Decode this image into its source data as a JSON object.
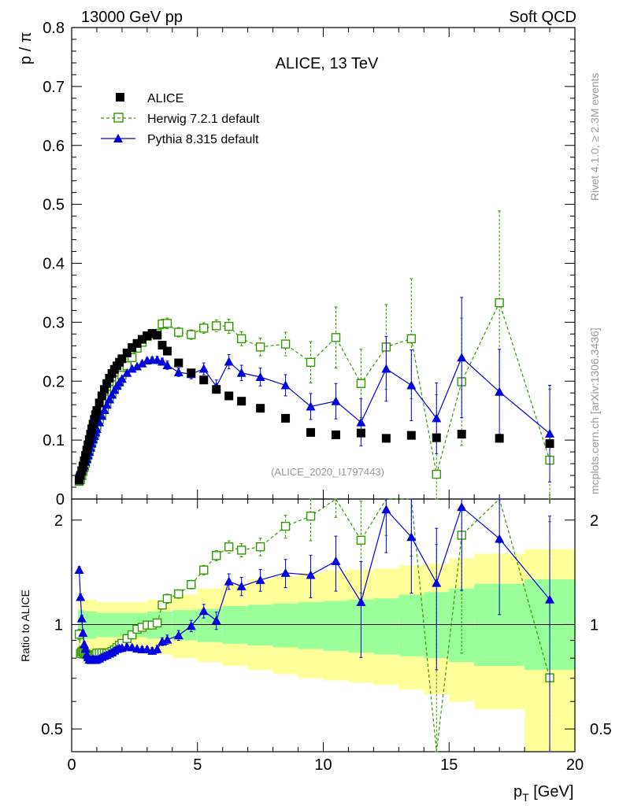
{
  "header": {
    "left": "13000 GeV pp",
    "right": "Soft QCD"
  },
  "side_text": {
    "rivet": "Rivet 4.1.0, ≥ 2.3M events",
    "mcplots": "mcplots.cern.ch [arXiv:1306.3436]"
  },
  "colors": {
    "data": "#000000",
    "herwig": "#339900",
    "pythia": "#0000dd",
    "band_inner": "#99ff99",
    "band_outer": "#ffff99"
  },
  "chart_data": [
    {
      "type": "scatter",
      "panel": "main",
      "title": "ALICE, 13 TeV",
      "analysis_label": "(ALICE_2020_I1797443)",
      "ylabel": "p / π",
      "xlabel": "",
      "xlim": [
        0,
        20
      ],
      "ylim": [
        0,
        0.8
      ],
      "x_ticks": [
        0,
        5,
        10,
        15,
        20
      ],
      "y_ticks": [
        0,
        0.1,
        0.2,
        0.3,
        0.4,
        0.5,
        0.6,
        0.7,
        0.8
      ],
      "y_tick_labels": [
        "0",
        "0.1",
        "0.2",
        "0.3",
        "0.4",
        "0.5",
        "0.6",
        "0.7",
        "0.8"
      ],
      "legend_position": "top-left",
      "series": [
        {
          "name": "ALICE",
          "style": "data",
          "x": [
            0.3,
            0.35,
            0.4,
            0.45,
            0.5,
            0.55,
            0.6,
            0.65,
            0.7,
            0.75,
            0.8,
            0.85,
            0.9,
            0.95,
            1.0,
            1.1,
            1.2,
            1.3,
            1.4,
            1.5,
            1.6,
            1.7,
            1.8,
            1.9,
            2.0,
            2.2,
            2.4,
            2.6,
            2.8,
            3.0,
            3.2,
            3.4,
            3.6,
            3.8,
            4.25,
            4.75,
            5.25,
            5.75,
            6.25,
            6.75,
            7.5,
            8.5,
            9.5,
            10.5,
            11.5,
            12.5,
            13.5,
            14.5,
            15.5,
            17.0,
            19.0
          ],
          "y": [
            0.032,
            0.04,
            0.048,
            0.056,
            0.065,
            0.074,
            0.083,
            0.092,
            0.101,
            0.11,
            0.119,
            0.127,
            0.135,
            0.143,
            0.15,
            0.163,
            0.175,
            0.186,
            0.196,
            0.205,
            0.213,
            0.22,
            0.226,
            0.232,
            0.238,
            0.248,
            0.257,
            0.264,
            0.271,
            0.277,
            0.281,
            0.278,
            0.261,
            0.251,
            0.231,
            0.214,
            0.202,
            0.186,
            0.175,
            0.166,
            0.154,
            0.137,
            0.113,
            0.109,
            0.112,
            0.103,
            0.108,
            0.104,
            0.11,
            0.103,
            0.094
          ],
          "err": []
        },
        {
          "name": "Herwig 7.2.1 default",
          "style": "herwig",
          "x": [
            0.3,
            0.35,
            0.4,
            0.45,
            0.5,
            0.55,
            0.6,
            0.65,
            0.7,
            0.75,
            0.8,
            0.85,
            0.9,
            0.95,
            1.0,
            1.1,
            1.2,
            1.3,
            1.4,
            1.5,
            1.6,
            1.7,
            1.8,
            1.9,
            2.0,
            2.2,
            2.4,
            2.6,
            2.8,
            3.0,
            3.2,
            3.4,
            3.6,
            3.8,
            4.25,
            4.75,
            5.25,
            5.75,
            6.25,
            6.75,
            7.5,
            8.5,
            9.5,
            10.5,
            11.5,
            12.5,
            13.5,
            14.5,
            15.5,
            17.0,
            19.0
          ],
          "y": [
            0.03,
            0.033,
            0.04,
            0.047,
            0.054,
            0.061,
            0.068,
            0.075,
            0.082,
            0.089,
            0.096,
            0.103,
            0.11,
            0.117,
            0.124,
            0.135,
            0.145,
            0.154,
            0.162,
            0.17,
            0.178,
            0.186,
            0.194,
            0.202,
            0.21,
            0.226,
            0.24,
            0.256,
            0.266,
            0.276,
            0.28,
            0.281,
            0.297,
            0.298,
            0.283,
            0.279,
            0.29,
            0.294,
            0.293,
            0.272,
            0.258,
            0.263,
            0.232,
            0.274,
            0.196,
            0.258,
            0.272,
            0.042,
            0.199,
            0.333,
            0.066
          ],
          "err": [
            0.001,
            0.001,
            0.001,
            0.001,
            0.001,
            0.001,
            0.001,
            0.001,
            0.001,
            0.001,
            0.001,
            0.001,
            0.001,
            0.001,
            0.002,
            0.002,
            0.002,
            0.002,
            0.002,
            0.002,
            0.002,
            0.002,
            0.002,
            0.002,
            0.003,
            0.003,
            0.003,
            0.004,
            0.004,
            0.005,
            0.006,
            0.007,
            0.008,
            0.009,
            0.008,
            0.008,
            0.009,
            0.01,
            0.012,
            0.012,
            0.015,
            0.02,
            0.035,
            0.052,
            0.058,
            0.072,
            0.102,
            0.135,
            0.108,
            0.156,
            0.12
          ]
        },
        {
          "name": "Pythia 8.315 default",
          "style": "pythia",
          "x": [
            0.3,
            0.35,
            0.4,
            0.45,
            0.5,
            0.55,
            0.6,
            0.65,
            0.7,
            0.75,
            0.8,
            0.85,
            0.9,
            0.95,
            1.0,
            1.1,
            1.2,
            1.3,
            1.4,
            1.5,
            1.6,
            1.7,
            1.8,
            1.9,
            2.0,
            2.2,
            2.4,
            2.6,
            2.8,
            3.0,
            3.2,
            3.4,
            3.6,
            3.8,
            4.25,
            4.75,
            5.25,
            5.75,
            6.25,
            6.75,
            7.5,
            8.5,
            9.5,
            10.5,
            11.5,
            12.5,
            13.5,
            14.5,
            15.5,
            17.0,
            19.0
          ],
          "y": [
            0.046,
            0.048,
            0.05,
            0.053,
            0.057,
            0.063,
            0.068,
            0.074,
            0.08,
            0.087,
            0.094,
            0.101,
            0.107,
            0.113,
            0.119,
            0.13,
            0.141,
            0.151,
            0.16,
            0.169,
            0.177,
            0.185,
            0.192,
            0.198,
            0.204,
            0.214,
            0.221,
            0.225,
            0.23,
            0.235,
            0.236,
            0.236,
            0.233,
            0.227,
            0.215,
            0.212,
            0.221,
            0.191,
            0.233,
            0.214,
            0.207,
            0.193,
            0.157,
            0.166,
            0.13,
            0.221,
            0.193,
            0.137,
            0.24,
            0.182,
            0.111
          ],
          "err": [
            0.001,
            0.001,
            0.001,
            0.001,
            0.001,
            0.001,
            0.001,
            0.001,
            0.001,
            0.001,
            0.001,
            0.001,
            0.001,
            0.001,
            0.002,
            0.002,
            0.002,
            0.002,
            0.002,
            0.002,
            0.002,
            0.002,
            0.002,
            0.002,
            0.002,
            0.003,
            0.003,
            0.003,
            0.004,
            0.004,
            0.005,
            0.006,
            0.006,
            0.007,
            0.007,
            0.008,
            0.01,
            0.011,
            0.012,
            0.013,
            0.015,
            0.018,
            0.022,
            0.03,
            0.04,
            0.055,
            0.06,
            0.06,
            0.102,
            0.072,
            0.082
          ]
        }
      ]
    },
    {
      "type": "line",
      "panel": "ratio",
      "ylabel": "Ratio to ALICE",
      "xlabel": "p_T [GeV]",
      "xlim": [
        0,
        20
      ],
      "ylim": [
        0.43,
        2.3
      ],
      "y_scale": "log",
      "x_ticks": [
        0,
        5,
        10,
        15,
        20
      ],
      "x_tick_labels": [
        "0",
        "5",
        "10",
        "15",
        "20"
      ],
      "y_ticks": [
        0.5,
        1,
        2
      ],
      "y_tick_labels": [
        "0.5",
        "1",
        "2"
      ],
      "uncertainty_band": {
        "x_edges": [
          0.25,
          0.5,
          1.0,
          2.0,
          3.0,
          4.0,
          5.0,
          6.0,
          7.0,
          8.0,
          9.0,
          10.0,
          11.0,
          12.0,
          13.0,
          14.0,
          15.0,
          16.0,
          18.0,
          20.0
        ],
        "inner_lo": [
          0.9,
          0.91,
          0.92,
          0.92,
          0.91,
          0.9,
          0.89,
          0.88,
          0.87,
          0.86,
          0.85,
          0.84,
          0.83,
          0.82,
          0.81,
          0.8,
          0.78,
          0.76,
          0.74
        ],
        "inner_hi": [
          1.1,
          1.09,
          1.08,
          1.08,
          1.09,
          1.1,
          1.11,
          1.13,
          1.14,
          1.15,
          1.16,
          1.17,
          1.18,
          1.19,
          1.22,
          1.24,
          1.27,
          1.31,
          1.35
        ],
        "outer_lo": [
          0.82,
          0.83,
          0.84,
          0.84,
          0.82,
          0.8,
          0.78,
          0.76,
          0.74,
          0.72,
          0.7,
          0.69,
          0.68,
          0.67,
          0.65,
          0.63,
          0.6,
          0.57,
          0.43
        ],
        "outer_hi": [
          1.19,
          1.18,
          1.16,
          1.16,
          1.18,
          1.22,
          1.27,
          1.31,
          1.35,
          1.38,
          1.41,
          1.43,
          1.44,
          1.45,
          1.48,
          1.5,
          1.55,
          1.6,
          1.65
        ]
      }
    }
  ]
}
